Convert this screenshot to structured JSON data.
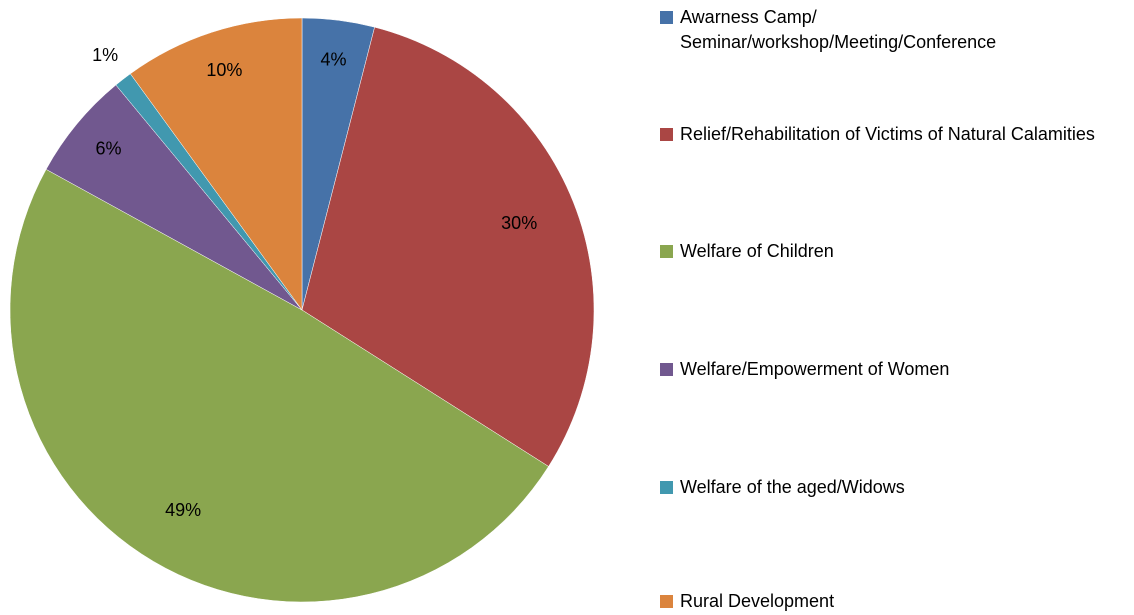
{
  "chart_data": {
    "type": "pie",
    "categories": [
      "Awarness Camp/ Seminar/workshop/Meeting/Conference",
      "Relief/Rehabilitation of Victims of Natural Calamities",
      "Welfare of Children",
      "Welfare/Empowerment of Women",
      "Welfare of the aged/Widows",
      "Rural Development"
    ],
    "values": [
      4,
      30,
      49,
      6,
      1,
      10
    ],
    "value_labels": [
      "4%",
      "30%",
      "49%",
      "6%",
      "1%",
      "10%"
    ],
    "colors": [
      "#4672a8",
      "#aa4644",
      "#8aa64f",
      "#71588f",
      "#4198af",
      "#db843d"
    ],
    "legend": "right"
  }
}
